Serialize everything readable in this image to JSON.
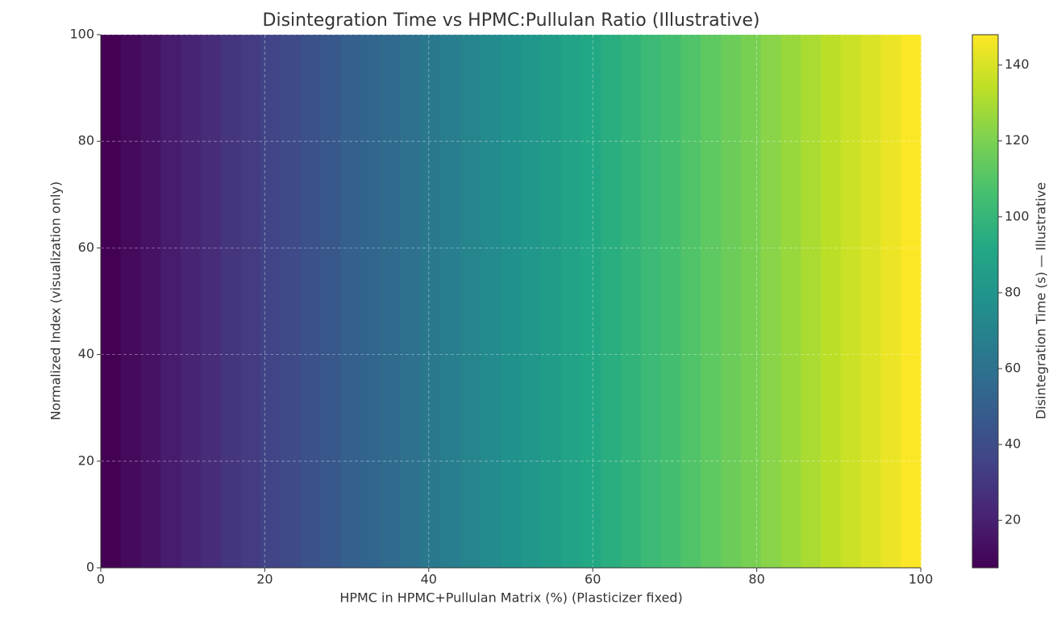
{
  "chart_data": {
    "type": "heatmap",
    "title": "Disintegration Time vs HPMC:Pullulan Ratio (Illustrative)",
    "xlabel": "HPMC in HPMC+Pullulan Matrix (%)  (Plasticizer fixed)",
    "ylabel": "Normalized Index (visualization only)",
    "colorbar_label": "Disintegration Time (s) — Illustrative",
    "colormap": "viridis",
    "x": [
      0,
      2.5,
      5,
      7.5,
      10,
      12.5,
      15,
      17.5,
      20,
      22.5,
      25,
      27.5,
      30,
      32.5,
      35,
      37.5,
      40,
      42.5,
      45,
      47.5,
      50,
      52.5,
      55,
      57.5,
      60,
      62.5,
      65,
      67.5,
      70,
      72.5,
      75,
      77.5,
      80,
      82.5,
      85,
      87.5,
      90,
      92.5,
      95,
      97.5,
      100
    ],
    "values": [
      7.5,
      11,
      14.5,
      18,
      21.5,
      25,
      28.5,
      32,
      35.5,
      39,
      42.5,
      46,
      49.5,
      53,
      56.5,
      60,
      63.5,
      67,
      70.5,
      74,
      77.5,
      81,
      84.5,
      88,
      91.5,
      95,
      98.5,
      102,
      105.5,
      109,
      112.5,
      116,
      119.5,
      123,
      126.5,
      130,
      133.5,
      137,
      140.5,
      144,
      147.5
    ],
    "xlim": [
      0,
      100
    ],
    "xticks": [
      0,
      20,
      40,
      60,
      80,
      100
    ],
    "ylim": [
      0,
      100
    ],
    "yticks": [
      0,
      20,
      40,
      60,
      80,
      100
    ],
    "clim": [
      7.5,
      148
    ],
    "cticks": [
      20,
      40,
      60,
      80,
      100,
      120,
      140
    ],
    "grid": true
  }
}
